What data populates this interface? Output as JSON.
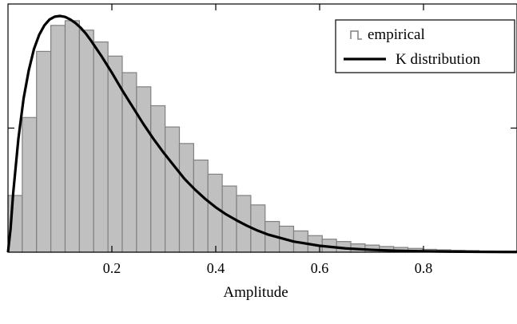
{
  "chart_data": {
    "type": "bar",
    "xlabel": "Amplitude",
    "ylabel": "",
    "title": "",
    "xlim": [
      0,
      0.98
    ],
    "ylim": [
      0,
      1
    ],
    "x_ticks": [
      0.2,
      0.4,
      0.6,
      0.8
    ],
    "x_tick_labels": [
      "0.2",
      "0.4",
      "0.6",
      "0.8"
    ],
    "grid": false,
    "legend_position": "top-right",
    "legend": [
      {
        "label": "empirical",
        "marker": "bar"
      },
      {
        "label": "K distribution",
        "marker": "line"
      }
    ],
    "series": [
      {
        "name": "empirical",
        "kind": "histogram",
        "bin_width": 0.0275,
        "x_start": 0.0,
        "values": [
          0.24,
          0.57,
          0.85,
          0.96,
          0.98,
          0.94,
          0.89,
          0.83,
          0.76,
          0.7,
          0.62,
          0.53,
          0.46,
          0.39,
          0.33,
          0.28,
          0.24,
          0.2,
          0.13,
          0.11,
          0.09,
          0.07,
          0.055,
          0.045,
          0.035,
          0.03,
          0.024,
          0.02,
          0.016,
          0.012,
          0.01,
          0.008,
          0.007,
          0.005,
          0.004,
          0.003
        ],
        "color": "#c0c0c0",
        "edge_color": "#808080"
      },
      {
        "name": "K distribution",
        "kind": "line",
        "x": [
          0.0,
          0.005,
          0.01,
          0.02,
          0.03,
          0.04,
          0.05,
          0.06,
          0.07,
          0.08,
          0.09,
          0.1,
          0.11,
          0.12,
          0.13,
          0.14,
          0.15,
          0.16,
          0.18,
          0.2,
          0.22,
          0.24,
          0.26,
          0.28,
          0.3,
          0.32,
          0.34,
          0.36,
          0.38,
          0.4,
          0.42,
          0.44,
          0.46,
          0.48,
          0.5,
          0.55,
          0.6,
          0.65,
          0.7,
          0.75,
          0.8,
          0.85,
          0.9,
          0.98
        ],
        "y": [
          0.0,
          0.1,
          0.25,
          0.48,
          0.65,
          0.77,
          0.86,
          0.92,
          0.96,
          0.985,
          0.997,
          1.0,
          0.996,
          0.985,
          0.97,
          0.95,
          0.925,
          0.895,
          0.83,
          0.76,
          0.685,
          0.615,
          0.545,
          0.48,
          0.42,
          0.365,
          0.31,
          0.265,
          0.225,
          0.19,
          0.16,
          0.135,
          0.112,
          0.092,
          0.075,
          0.045,
          0.027,
          0.016,
          0.01,
          0.006,
          0.004,
          0.0025,
          0.0015,
          0.0008
        ],
        "color": "#000000"
      }
    ]
  }
}
